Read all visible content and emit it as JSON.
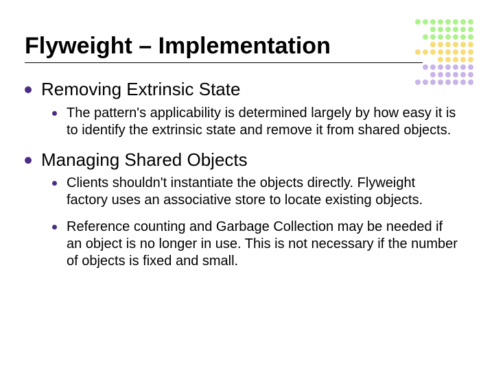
{
  "title": "Flyweight – Implementation",
  "sections": [
    {
      "heading": "Removing Extrinsic State",
      "points": [
        "The pattern's applicability is determined largely by how easy it is to identify the extrinsic state and remove it from shared objects."
      ]
    },
    {
      "heading": "Managing Shared Objects",
      "points": [
        "Clients shouldn't instantiate the objects directly. Flyweight factory uses an associative store to locate existing objects.",
        "Reference counting and Garbage Collection may be needed if an object is no longer in use. This is not necessary if the number of objects is fixed and small."
      ]
    }
  ],
  "styling": {
    "slide_width": 720,
    "slide_height": 540,
    "background_color": "#ffffff",
    "text_color": "#000000",
    "bullet_color": "#4b2e83",
    "title_fontsize": 34,
    "title_weight": "bold",
    "l1_fontsize": 26,
    "l2_fontsize": 20,
    "rule_color": "#000000",
    "rule_width": 580,
    "font_family": "Arial"
  },
  "decoration": {
    "dot_size": 8,
    "gap": 3,
    "rows": [
      [
        "#aef28d",
        "#aef28d",
        "#aef28d",
        "#aef28d",
        "#aef28d",
        "#aef28d",
        "#aef28d",
        "#aef28d"
      ],
      [
        "#aef28d",
        "#aef28d",
        "#aef28d",
        "#aef28d",
        "#aef28d",
        "#aef28d"
      ],
      [
        "#aef28d",
        "#aef28d",
        "#aef28d",
        "#aef28d",
        "#aef28d",
        "#aef28d",
        "#aef28d"
      ],
      [
        "#f6dd7a",
        "#f6dd7a",
        "#f6dd7a",
        "#f6dd7a",
        "#f6dd7a",
        "#f6dd7a"
      ],
      [
        "#f6dd7a",
        "#f6dd7a",
        "#f6dd7a",
        "#f6dd7a",
        "#f6dd7a",
        "#f6dd7a",
        "#f6dd7a",
        "#f6dd7a"
      ],
      [
        "#f6dd7a",
        "#f6dd7a",
        "#f6dd7a",
        "#f6dd7a",
        "#f6dd7a"
      ],
      [
        "#c9b4e8",
        "#c9b4e8",
        "#c9b4e8",
        "#c9b4e8",
        "#c9b4e8",
        "#c9b4e8",
        "#c9b4e8"
      ],
      [
        "#c9b4e8",
        "#c9b4e8",
        "#c9b4e8",
        "#c9b4e8",
        "#c9b4e8",
        "#c9b4e8"
      ],
      [
        "#c9b4e8",
        "#c9b4e8",
        "#c9b4e8",
        "#c9b4e8",
        "#c9b4e8",
        "#c9b4e8",
        "#c9b4e8",
        "#c9b4e8"
      ]
    ]
  }
}
